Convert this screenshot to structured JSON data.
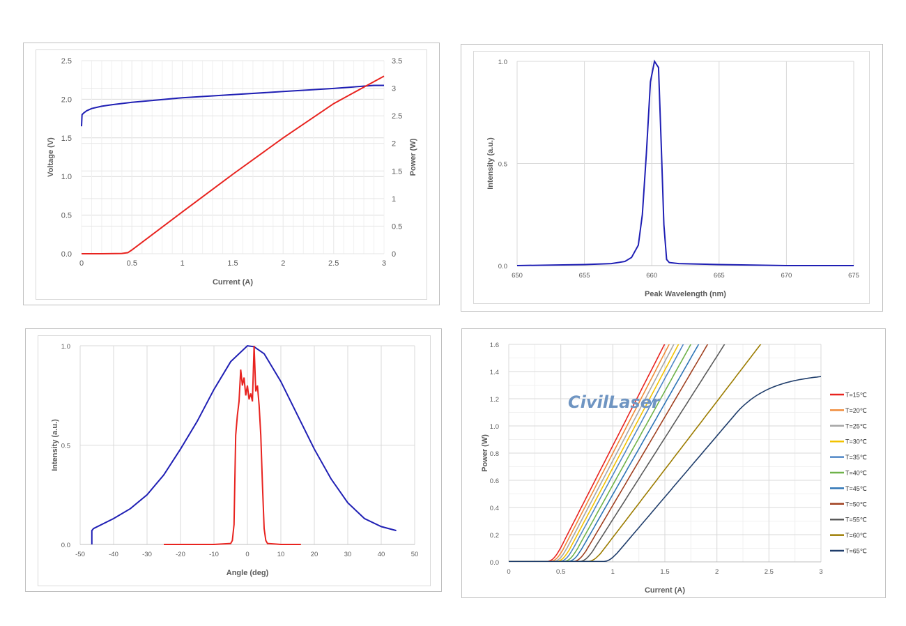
{
  "watermark": "CivilLaser",
  "chart_data": [
    {
      "type": "line",
      "xlabel": "Current (A)",
      "ylabel": "Voltage (V)",
      "y2label": "Power (W)",
      "xlim": [
        0,
        3
      ],
      "ylim": [
        0,
        2.5
      ],
      "y2lim": [
        0,
        3.5
      ],
      "xticks": [
        "0",
        "0.5",
        "1",
        "1.5",
        "2",
        "2.5",
        "3"
      ],
      "yticks": [
        "0.0",
        "0.5",
        "1.0",
        "1.5",
        "2.0",
        "2.5"
      ],
      "y2ticks": [
        "0",
        "0.5",
        "1",
        "1.5",
        "2",
        "2.5",
        "3",
        "3.5"
      ],
      "grid": true,
      "series": [
        {
          "axis": "left",
          "color": "#1f1fb4",
          "x": [
            0,
            0.005,
            0.02,
            0.05,
            0.1,
            0.2,
            0.3,
            0.5,
            0.75,
            1.0,
            1.5,
            2.0,
            2.5,
            2.9,
            3.0
          ],
          "y": [
            1.65,
            1.8,
            1.82,
            1.85,
            1.88,
            1.91,
            1.93,
            1.96,
            1.99,
            2.02,
            2.06,
            2.1,
            2.14,
            2.18,
            2.18
          ]
        },
        {
          "axis": "right",
          "color": "#e8231f",
          "x": [
            0,
            0.2,
            0.4,
            0.46,
            0.5,
            1.0,
            1.5,
            2.0,
            2.5,
            3.0
          ],
          "y": [
            0,
            0,
            0.005,
            0.02,
            0.07,
            0.76,
            1.44,
            2.1,
            2.72,
            3.22
          ]
        }
      ]
    },
    {
      "type": "line",
      "xlabel": "Peak Wavelength (nm)",
      "ylabel": "Intensity (a.u.)",
      "xlim": [
        650,
        675
      ],
      "ylim": [
        0,
        1
      ],
      "xticks": [
        "650",
        "655",
        "660",
        "665",
        "670",
        "675"
      ],
      "yticks": [
        "0.0",
        "0.5",
        "1.0"
      ],
      "grid": true,
      "series": [
        {
          "color": "#1f1fb4",
          "x": [
            650,
            655,
            657,
            658,
            658.5,
            659,
            659.3,
            659.6,
            659.9,
            660.2,
            660.5,
            660.7,
            660.9,
            661.1,
            661.3,
            662,
            665,
            670,
            675
          ],
          "y": [
            0,
            0.005,
            0.01,
            0.02,
            0.04,
            0.1,
            0.25,
            0.55,
            0.9,
            1.0,
            0.97,
            0.6,
            0.2,
            0.03,
            0.015,
            0.01,
            0.005,
            0,
            0
          ]
        }
      ]
    },
    {
      "type": "line",
      "xlabel": "Angle (deg)",
      "ylabel": "Intensity (a.u.)",
      "xlim": [
        -50,
        50
      ],
      "ylim": [
        0,
        1
      ],
      "xticks": [
        "-50",
        "-40",
        "-30",
        "-20",
        "-10",
        "0",
        "10",
        "20",
        "30",
        "40",
        "50"
      ],
      "yticks": [
        "0.0",
        "0.5",
        "1.0"
      ],
      "grid": true,
      "series": [
        {
          "color": "#1f1fb4",
          "x": [
            -46.5,
            -46.5,
            -46,
            -40,
            -35,
            -30,
            -25,
            -20,
            -15,
            -10,
            -5,
            0,
            2,
            5,
            10,
            15,
            20,
            25,
            30,
            35,
            40,
            44.5
          ],
          "y": [
            0,
            0.07,
            0.08,
            0.13,
            0.18,
            0.25,
            0.35,
            0.48,
            0.62,
            0.78,
            0.92,
            1.0,
            0.995,
            0.96,
            0.82,
            0.65,
            0.48,
            0.33,
            0.21,
            0.13,
            0.09,
            0.07
          ]
        },
        {
          "color": "#e8231f",
          "x": [
            -25,
            -10,
            -5,
            -4.5,
            -4,
            -3.5,
            -3,
            -2.5,
            -2,
            -1.5,
            -1,
            -0.5,
            0,
            0.5,
            1,
            1.5,
            2,
            2.5,
            3,
            3.5,
            4,
            4.5,
            5,
            5.5,
            6,
            10,
            16
          ],
          "y": [
            0,
            0,
            0.005,
            0.02,
            0.1,
            0.55,
            0.65,
            0.72,
            0.88,
            0.8,
            0.84,
            0.75,
            0.8,
            0.73,
            0.76,
            0.72,
            1.0,
            0.77,
            0.8,
            0.7,
            0.55,
            0.3,
            0.08,
            0.02,
            0.005,
            0,
            0
          ]
        }
      ]
    },
    {
      "type": "line",
      "xlabel": "Current (A)",
      "ylabel": "Power (W)",
      "xlim": [
        0,
        3
      ],
      "ylim": [
        0,
        1.6
      ],
      "xticks": [
        "0",
        "0.5",
        "1",
        "1.5",
        "2",
        "2.5",
        "3"
      ],
      "yticks": [
        "0.0",
        "0.2",
        "0.4",
        "0.6",
        "0.8",
        "1.0",
        "1.2",
        "1.4",
        "1.6"
      ],
      "grid": true,
      "legend": "right",
      "series": [
        {
          "name": "T=15℃",
          "color": "#e8231f",
          "threshold": 0.43,
          "slope": 1.5,
          "sat": null
        },
        {
          "name": "T=20℃",
          "color": "#f08b3a",
          "threshold": 0.46,
          "slope": 1.48,
          "sat": null
        },
        {
          "name": "T=25℃",
          "color": "#a6a6a6",
          "threshold": 0.49,
          "slope": 1.46,
          "sat": null
        },
        {
          "name": "T=30℃",
          "color": "#f2c200",
          "threshold": 0.52,
          "slope": 1.44,
          "sat": null
        },
        {
          "name": "T=35℃",
          "color": "#4f86c6",
          "threshold": 0.55,
          "slope": 1.42,
          "sat": null
        },
        {
          "name": "T=40℃",
          "color": "#6fb24a",
          "threshold": 0.59,
          "slope": 1.38,
          "sat": null
        },
        {
          "name": "T=45℃",
          "color": "#2e75b6",
          "threshold": 0.63,
          "slope": 1.34,
          "sat": null
        },
        {
          "name": "T=50℃",
          "color": "#a04020",
          "threshold": 0.68,
          "slope": 1.3,
          "sat": null
        },
        {
          "name": "T=55℃",
          "color": "#5a5a5a",
          "threshold": 0.74,
          "slope": 1.2,
          "sat": null
        },
        {
          "name": "T=60℃",
          "color": "#9c7c00",
          "threshold": 0.82,
          "slope": 1.0,
          "sat": null
        },
        {
          "name": "T=65℃",
          "color": "#1f3d6b",
          "threshold": 0.97,
          "slope": 0.9,
          "sat": 1.39
        }
      ]
    }
  ]
}
